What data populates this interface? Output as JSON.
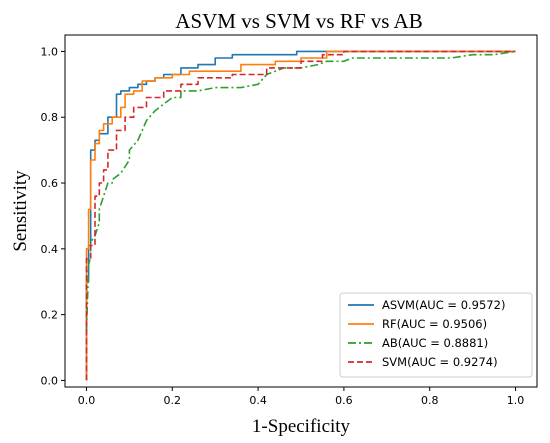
{
  "chart_data": {
    "type": "line",
    "title": "ASVM vs SVM vs RF vs AB",
    "xlabel": "1-Specificity",
    "ylabel": "Sensitivity",
    "xlim": [
      -0.05,
      1.05
    ],
    "ylim": [
      -0.02,
      1.05
    ],
    "xticks": [
      0.0,
      0.2,
      0.4,
      0.6,
      0.8,
      1.0
    ],
    "xtick_labels": [
      "0.0",
      "0.2",
      "0.4",
      "0.6",
      "0.8",
      "1.0"
    ],
    "yticks": [
      0.0,
      0.2,
      0.4,
      0.6,
      0.8,
      1.0
    ],
    "ytick_labels": [
      "0.0",
      "0.2",
      "0.4",
      "0.6",
      "0.8",
      "1.0"
    ],
    "grid": false,
    "legend_position": "lower-right",
    "series": [
      {
        "name": "ASVM(AUC = 0.9572)",
        "color": "#1f77b4",
        "style": "solid",
        "x": [
          0.0,
          0.0,
          0.005,
          0.005,
          0.01,
          0.01,
          0.02,
          0.02,
          0.03,
          0.03,
          0.05,
          0.05,
          0.07,
          0.07,
          0.08,
          0.08,
          0.1,
          0.1,
          0.12,
          0.12,
          0.14,
          0.14,
          0.16,
          0.16,
          0.18,
          0.18,
          0.22,
          0.22,
          0.26,
          0.26,
          0.3,
          0.3,
          0.34,
          0.34,
          0.49,
          0.49,
          0.6,
          1.0
        ],
        "y": [
          0.0,
          0.3,
          0.3,
          0.41,
          0.41,
          0.7,
          0.7,
          0.73,
          0.73,
          0.75,
          0.75,
          0.8,
          0.8,
          0.87,
          0.87,
          0.88,
          0.88,
          0.89,
          0.89,
          0.9,
          0.9,
          0.91,
          0.91,
          0.92,
          0.92,
          0.93,
          0.93,
          0.95,
          0.95,
          0.96,
          0.96,
          0.98,
          0.98,
          0.99,
          0.99,
          1.0,
          1.0,
          1.0
        ]
      },
      {
        "name": "RF(AUC = 0.9506)",
        "color": "#ff7f0e",
        "style": "solid",
        "x": [
          0.0,
          0.0,
          0.005,
          0.005,
          0.01,
          0.01,
          0.02,
          0.02,
          0.03,
          0.03,
          0.04,
          0.04,
          0.06,
          0.06,
          0.08,
          0.08,
          0.09,
          0.09,
          0.11,
          0.11,
          0.13,
          0.13,
          0.16,
          0.16,
          0.2,
          0.2,
          0.24,
          0.24,
          0.36,
          0.36,
          0.44,
          0.44,
          0.5,
          0.5,
          0.56,
          0.56,
          1.0
        ],
        "y": [
          0.0,
          0.4,
          0.4,
          0.52,
          0.52,
          0.67,
          0.67,
          0.72,
          0.72,
          0.76,
          0.76,
          0.78,
          0.78,
          0.8,
          0.8,
          0.83,
          0.83,
          0.87,
          0.87,
          0.88,
          0.88,
          0.91,
          0.91,
          0.92,
          0.92,
          0.93,
          0.93,
          0.94,
          0.94,
          0.96,
          0.96,
          0.97,
          0.97,
          0.98,
          0.98,
          1.0,
          1.0
        ]
      },
      {
        "name": "AB(AUC = 0.8881)",
        "color": "#2ca02c",
        "style": "dashdot",
        "x": [
          0.0,
          0.005,
          0.01,
          0.01,
          0.02,
          0.03,
          0.03,
          0.04,
          0.05,
          0.06,
          0.06,
          0.08,
          0.09,
          0.1,
          0.1,
          0.12,
          0.13,
          0.14,
          0.16,
          0.18,
          0.2,
          0.22,
          0.22,
          0.24,
          0.26,
          0.3,
          0.36,
          0.4,
          0.42,
          0.44,
          0.46,
          0.5,
          0.54,
          0.56,
          0.6,
          0.62,
          0.85,
          0.9,
          0.95,
          1.0
        ],
        "y": [
          0.15,
          0.35,
          0.38,
          0.42,
          0.44,
          0.48,
          0.52,
          0.56,
          0.6,
          0.6,
          0.61,
          0.63,
          0.65,
          0.67,
          0.7,
          0.73,
          0.76,
          0.79,
          0.82,
          0.84,
          0.86,
          0.86,
          0.88,
          0.88,
          0.88,
          0.89,
          0.89,
          0.9,
          0.93,
          0.94,
          0.95,
          0.95,
          0.96,
          0.97,
          0.97,
          0.98,
          0.98,
          0.99,
          0.99,
          1.0
        ]
      },
      {
        "name": "SVM(AUC = 0.9274)",
        "color": "#d62728",
        "style": "dashed",
        "x": [
          0.0,
          0.0,
          0.01,
          0.01,
          0.02,
          0.02,
          0.03,
          0.03,
          0.04,
          0.04,
          0.05,
          0.05,
          0.07,
          0.07,
          0.09,
          0.09,
          0.11,
          0.11,
          0.14,
          0.14,
          0.18,
          0.18,
          0.22,
          0.22,
          0.26,
          0.26,
          0.34,
          0.34,
          0.42,
          0.42,
          0.5,
          0.5,
          0.55,
          0.55,
          0.6,
          0.6,
          1.0
        ],
        "y": [
          0.0,
          0.37,
          0.37,
          0.41,
          0.41,
          0.56,
          0.56,
          0.6,
          0.6,
          0.64,
          0.64,
          0.7,
          0.7,
          0.76,
          0.76,
          0.8,
          0.8,
          0.83,
          0.83,
          0.86,
          0.86,
          0.88,
          0.88,
          0.9,
          0.9,
          0.92,
          0.92,
          0.93,
          0.93,
          0.95,
          0.95,
          0.97,
          0.97,
          0.99,
          0.99,
          1.0,
          1.0
        ]
      }
    ]
  }
}
